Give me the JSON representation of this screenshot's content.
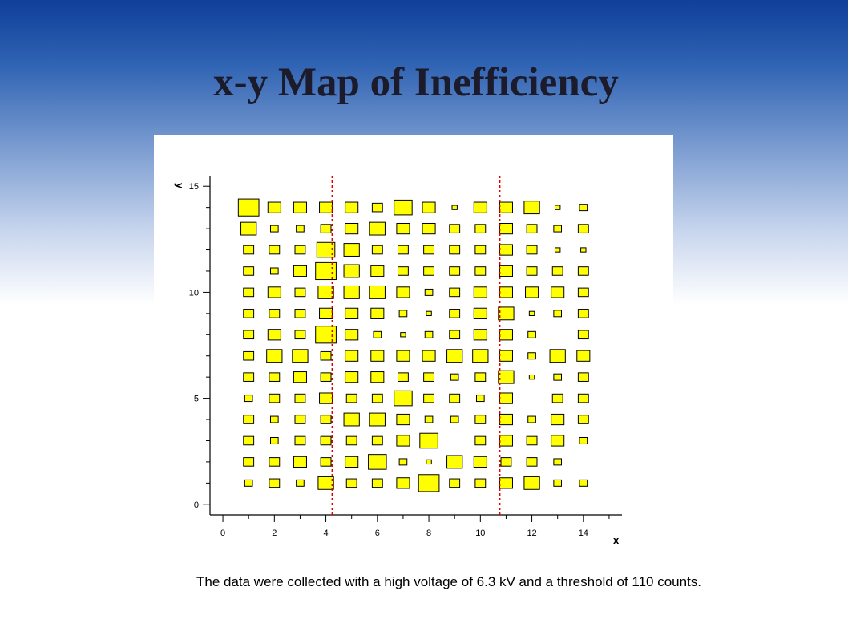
{
  "slide": {
    "title": "x-y Map of Inefficiency",
    "caption": "The data were collected with a high voltage of 6.3 kV and a threshold of 110 counts."
  },
  "colors": {
    "box_fill": "#ffff00",
    "box_stroke": "#000000",
    "marker_line": "#e00000"
  },
  "chart_data": {
    "type": "box-heatmap",
    "title": "",
    "xlabel": "x",
    "ylabel": "y",
    "xlim": [
      -0.5,
      15.5
    ],
    "ylim": [
      -0.5,
      15.5
    ],
    "x_ticks": [
      0,
      2,
      4,
      6,
      8,
      10,
      12,
      14
    ],
    "y_ticks": [
      0,
      5,
      10,
      15
    ],
    "x": [
      1,
      2,
      3,
      4,
      5,
      6,
      7,
      8,
      9,
      10,
      11,
      12,
      13,
      14
    ],
    "y": [
      1,
      2,
      3,
      4,
      5,
      6,
      7,
      8,
      9,
      10,
      11,
      12,
      13,
      14
    ],
    "value_scale": "relative box size 0-10",
    "z": [
      [
        3,
        4,
        3,
        6,
        4,
        4,
        5,
        8,
        4,
        4,
        5,
        6,
        3,
        3
      ],
      [
        4,
        4,
        5,
        4,
        5,
        7,
        3,
        2,
        6,
        5,
        4,
        4,
        3,
        0
      ],
      [
        4,
        3,
        4,
        4,
        4,
        4,
        5,
        7,
        0,
        4,
        5,
        4,
        5,
        3
      ],
      [
        4,
        3,
        4,
        4,
        6,
        6,
        5,
        3,
        3,
        4,
        5,
        3,
        5,
        4
      ],
      [
        3,
        4,
        4,
        5,
        4,
        4,
        7,
        4,
        4,
        3,
        5,
        0,
        4,
        4
      ],
      [
        4,
        4,
        5,
        4,
        5,
        5,
        4,
        4,
        3,
        4,
        6,
        2,
        3,
        4
      ],
      [
        4,
        6,
        6,
        4,
        5,
        5,
        5,
        5,
        6,
        6,
        5,
        3,
        6,
        5
      ],
      [
        4,
        5,
        4,
        8,
        5,
        3,
        2,
        3,
        4,
        5,
        5,
        3,
        0,
        4
      ],
      [
        4,
        4,
        4,
        5,
        5,
        5,
        3,
        2,
        4,
        5,
        6,
        2,
        3,
        4
      ],
      [
        4,
        5,
        4,
        6,
        6,
        6,
        5,
        3,
        4,
        5,
        5,
        5,
        5,
        4
      ],
      [
        4,
        3,
        5,
        8,
        6,
        5,
        4,
        4,
        4,
        4,
        5,
        4,
        4,
        4
      ],
      [
        4,
        4,
        4,
        7,
        6,
        4,
        4,
        4,
        4,
        4,
        5,
        4,
        2,
        2
      ],
      [
        6,
        3,
        3,
        4,
        5,
        6,
        5,
        5,
        4,
        4,
        5,
        4,
        3,
        4
      ],
      [
        8,
        5,
        5,
        5,
        5,
        4,
        7,
        5,
        2,
        5,
        5,
        6,
        2,
        3
      ]
    ],
    "vertical_markers_x": [
      4.25,
      10.75
    ],
    "grid": false,
    "legend": "none"
  }
}
